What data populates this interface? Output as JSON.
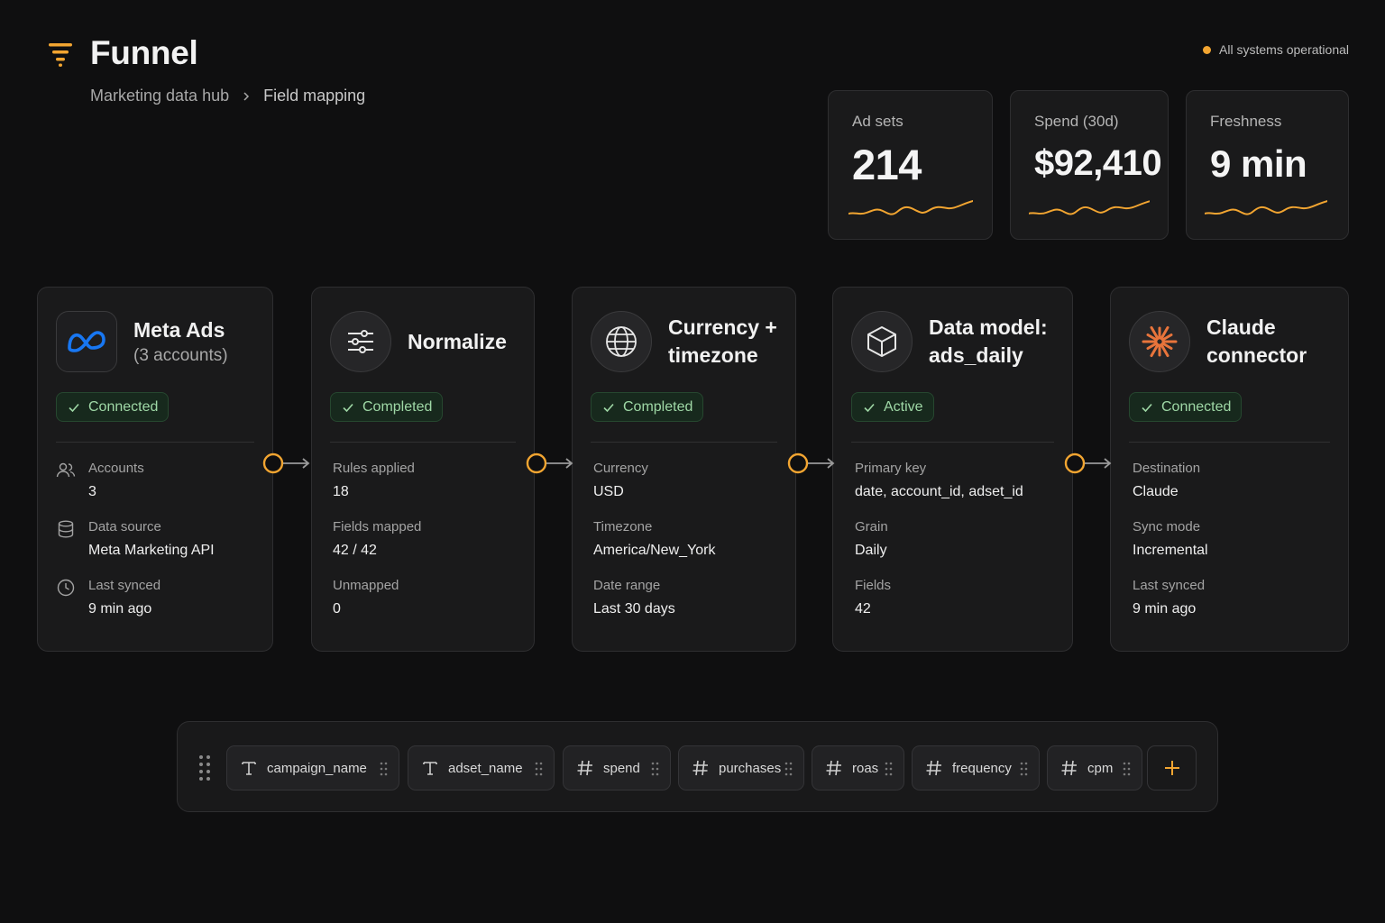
{
  "header": {
    "app_title": "Funnel",
    "breadcrumb": [
      "Marketing data hub",
      "Field mapping"
    ],
    "status_text": "All systems operational"
  },
  "stats": [
    {
      "label": "Ad sets",
      "value": "214"
    },
    {
      "label": "Spend (30d)",
      "value": "$92,410"
    },
    {
      "label": "Freshness",
      "value": "9 min"
    }
  ],
  "pipeline": [
    {
      "title_line1": "Meta Ads",
      "subtitle": "(3 accounts)",
      "icon": "meta-logo-icon",
      "status": "Connected",
      "rows": [
        {
          "icon": "users-icon",
          "label": "Accounts",
          "value": "3"
        },
        {
          "icon": "database-icon",
          "label": "Data source",
          "value": "Meta Marketing API"
        },
        {
          "icon": "clock-icon",
          "label": "Last synced",
          "value": "9 min ago"
        }
      ]
    },
    {
      "title_line1": "Normalize",
      "icon": "sliders-icon",
      "status": "Completed",
      "rows": [
        {
          "label": "Rules applied",
          "value": "18"
        },
        {
          "label": "Fields mapped",
          "value": "42 / 42"
        },
        {
          "label": "Unmapped",
          "value": "0"
        }
      ]
    },
    {
      "title_line1": "Currency +",
      "title_line2": "timezone",
      "icon": "globe-icon",
      "status": "Completed",
      "rows": [
        {
          "label": "Currency",
          "value": "USD"
        },
        {
          "label": "Timezone",
          "value": "America/New_York"
        },
        {
          "label": "Date range",
          "value": "Last 30 days"
        }
      ]
    },
    {
      "title_line1": "Data model:",
      "title_line2": "ads_daily",
      "icon": "cube-icon",
      "status": "Active",
      "rows": [
        {
          "label": "Primary key",
          "value": "date, account_id, adset_id"
        },
        {
          "label": "Grain",
          "value": "Daily"
        },
        {
          "label": "Fields",
          "value": "42"
        }
      ]
    },
    {
      "title_line1": "Claude",
      "title_line2": "connector",
      "icon": "claude-starburst-icon",
      "status": "Connected",
      "rows": [
        {
          "label": "Destination",
          "value": "Claude"
        },
        {
          "label": "Sync mode",
          "value": "Incremental"
        },
        {
          "label": "Last synced",
          "value": "9 min ago"
        }
      ]
    }
  ],
  "fields": [
    {
      "type": "text",
      "name": "campaign_name"
    },
    {
      "type": "text",
      "name": "adset_name"
    },
    {
      "type": "number",
      "name": "spend"
    },
    {
      "type": "number",
      "name": "purchases"
    },
    {
      "type": "number",
      "name": "roas"
    },
    {
      "type": "number",
      "name": "frequency"
    },
    {
      "type": "number",
      "name": "cpm"
    }
  ],
  "colors": {
    "accent": "#f2a531",
    "success_text": "#9fd8a6",
    "meta_blue": "#1877f2",
    "claude_orange": "#e8743b"
  }
}
